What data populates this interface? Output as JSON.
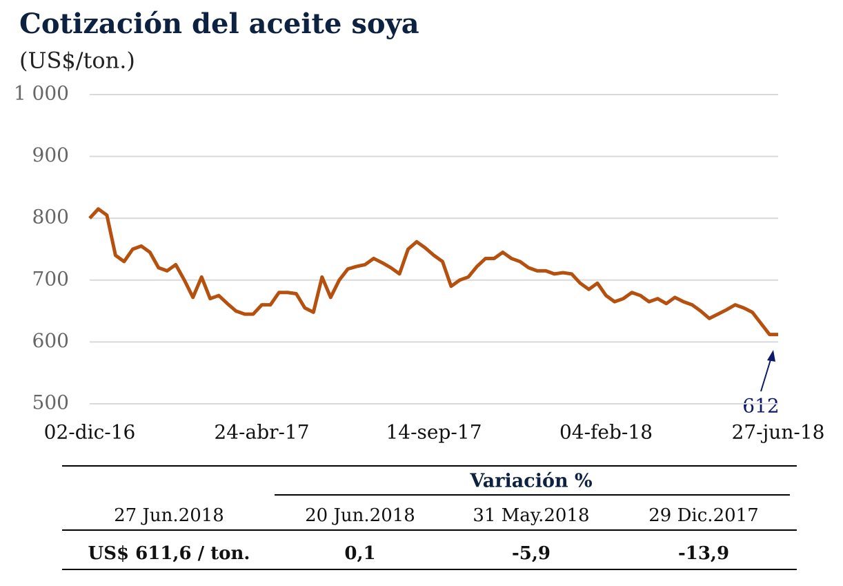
{
  "chart_data": {
    "type": "line",
    "title": "Cotización del aceite soya",
    "subtitle": "(US$/ton.)",
    "categories": [
      "02-dic-16",
      null,
      null,
      null,
      null,
      null,
      null,
      null,
      null,
      null,
      null,
      null,
      null,
      null,
      null,
      null,
      null,
      null,
      null,
      null,
      "24-abr-17",
      null,
      null,
      null,
      null,
      null,
      null,
      null,
      null,
      null,
      null,
      null,
      null,
      null,
      null,
      null,
      null,
      null,
      null,
      null,
      "14-sep-17",
      null,
      null,
      null,
      null,
      null,
      null,
      null,
      null,
      null,
      null,
      null,
      null,
      null,
      null,
      null,
      null,
      null,
      null,
      null,
      "04-feb-18",
      null,
      null,
      null,
      null,
      null,
      null,
      null,
      null,
      null,
      null,
      null,
      null,
      null,
      null,
      null,
      null,
      null,
      null,
      null,
      "27-jun-18"
    ],
    "series": [
      {
        "color": "#b5500f",
        "values": [
          800,
          815,
          805,
          740,
          730,
          750,
          755,
          745,
          720,
          715,
          725,
          700,
          672,
          705,
          670,
          675,
          662,
          650,
          645,
          645,
          660,
          660,
          680,
          680,
          678,
          655,
          648,
          705,
          672,
          700,
          718,
          722,
          725,
          735,
          728,
          720,
          710,
          750,
          762,
          752,
          740,
          730,
          690,
          700,
          705,
          722,
          735,
          735,
          745,
          735,
          730,
          720,
          715,
          715,
          710,
          712,
          710,
          695,
          685,
          695,
          675,
          665,
          670,
          680,
          675,
          665,
          670,
          662,
          672,
          665,
          660,
          650,
          638,
          645,
          652,
          660,
          655,
          648,
          630,
          612,
          612
        ]
      }
    ],
    "ylim": [
      500,
      1000
    ],
    "yticks": [
      500,
      600,
      700,
      800,
      900,
      {
        "value": 1000,
        "label": "1 000"
      }
    ],
    "grid": true,
    "annotation": "612"
  },
  "table": {
    "group_header": "Variación %",
    "header": [
      "27 Jun.2018",
      "20 Jun.2018",
      "31 May.2018",
      "29 Dic.2017"
    ],
    "row": [
      "US$ 611,6 / ton.",
      "0,1",
      "-5,9",
      "-13,9"
    ]
  }
}
